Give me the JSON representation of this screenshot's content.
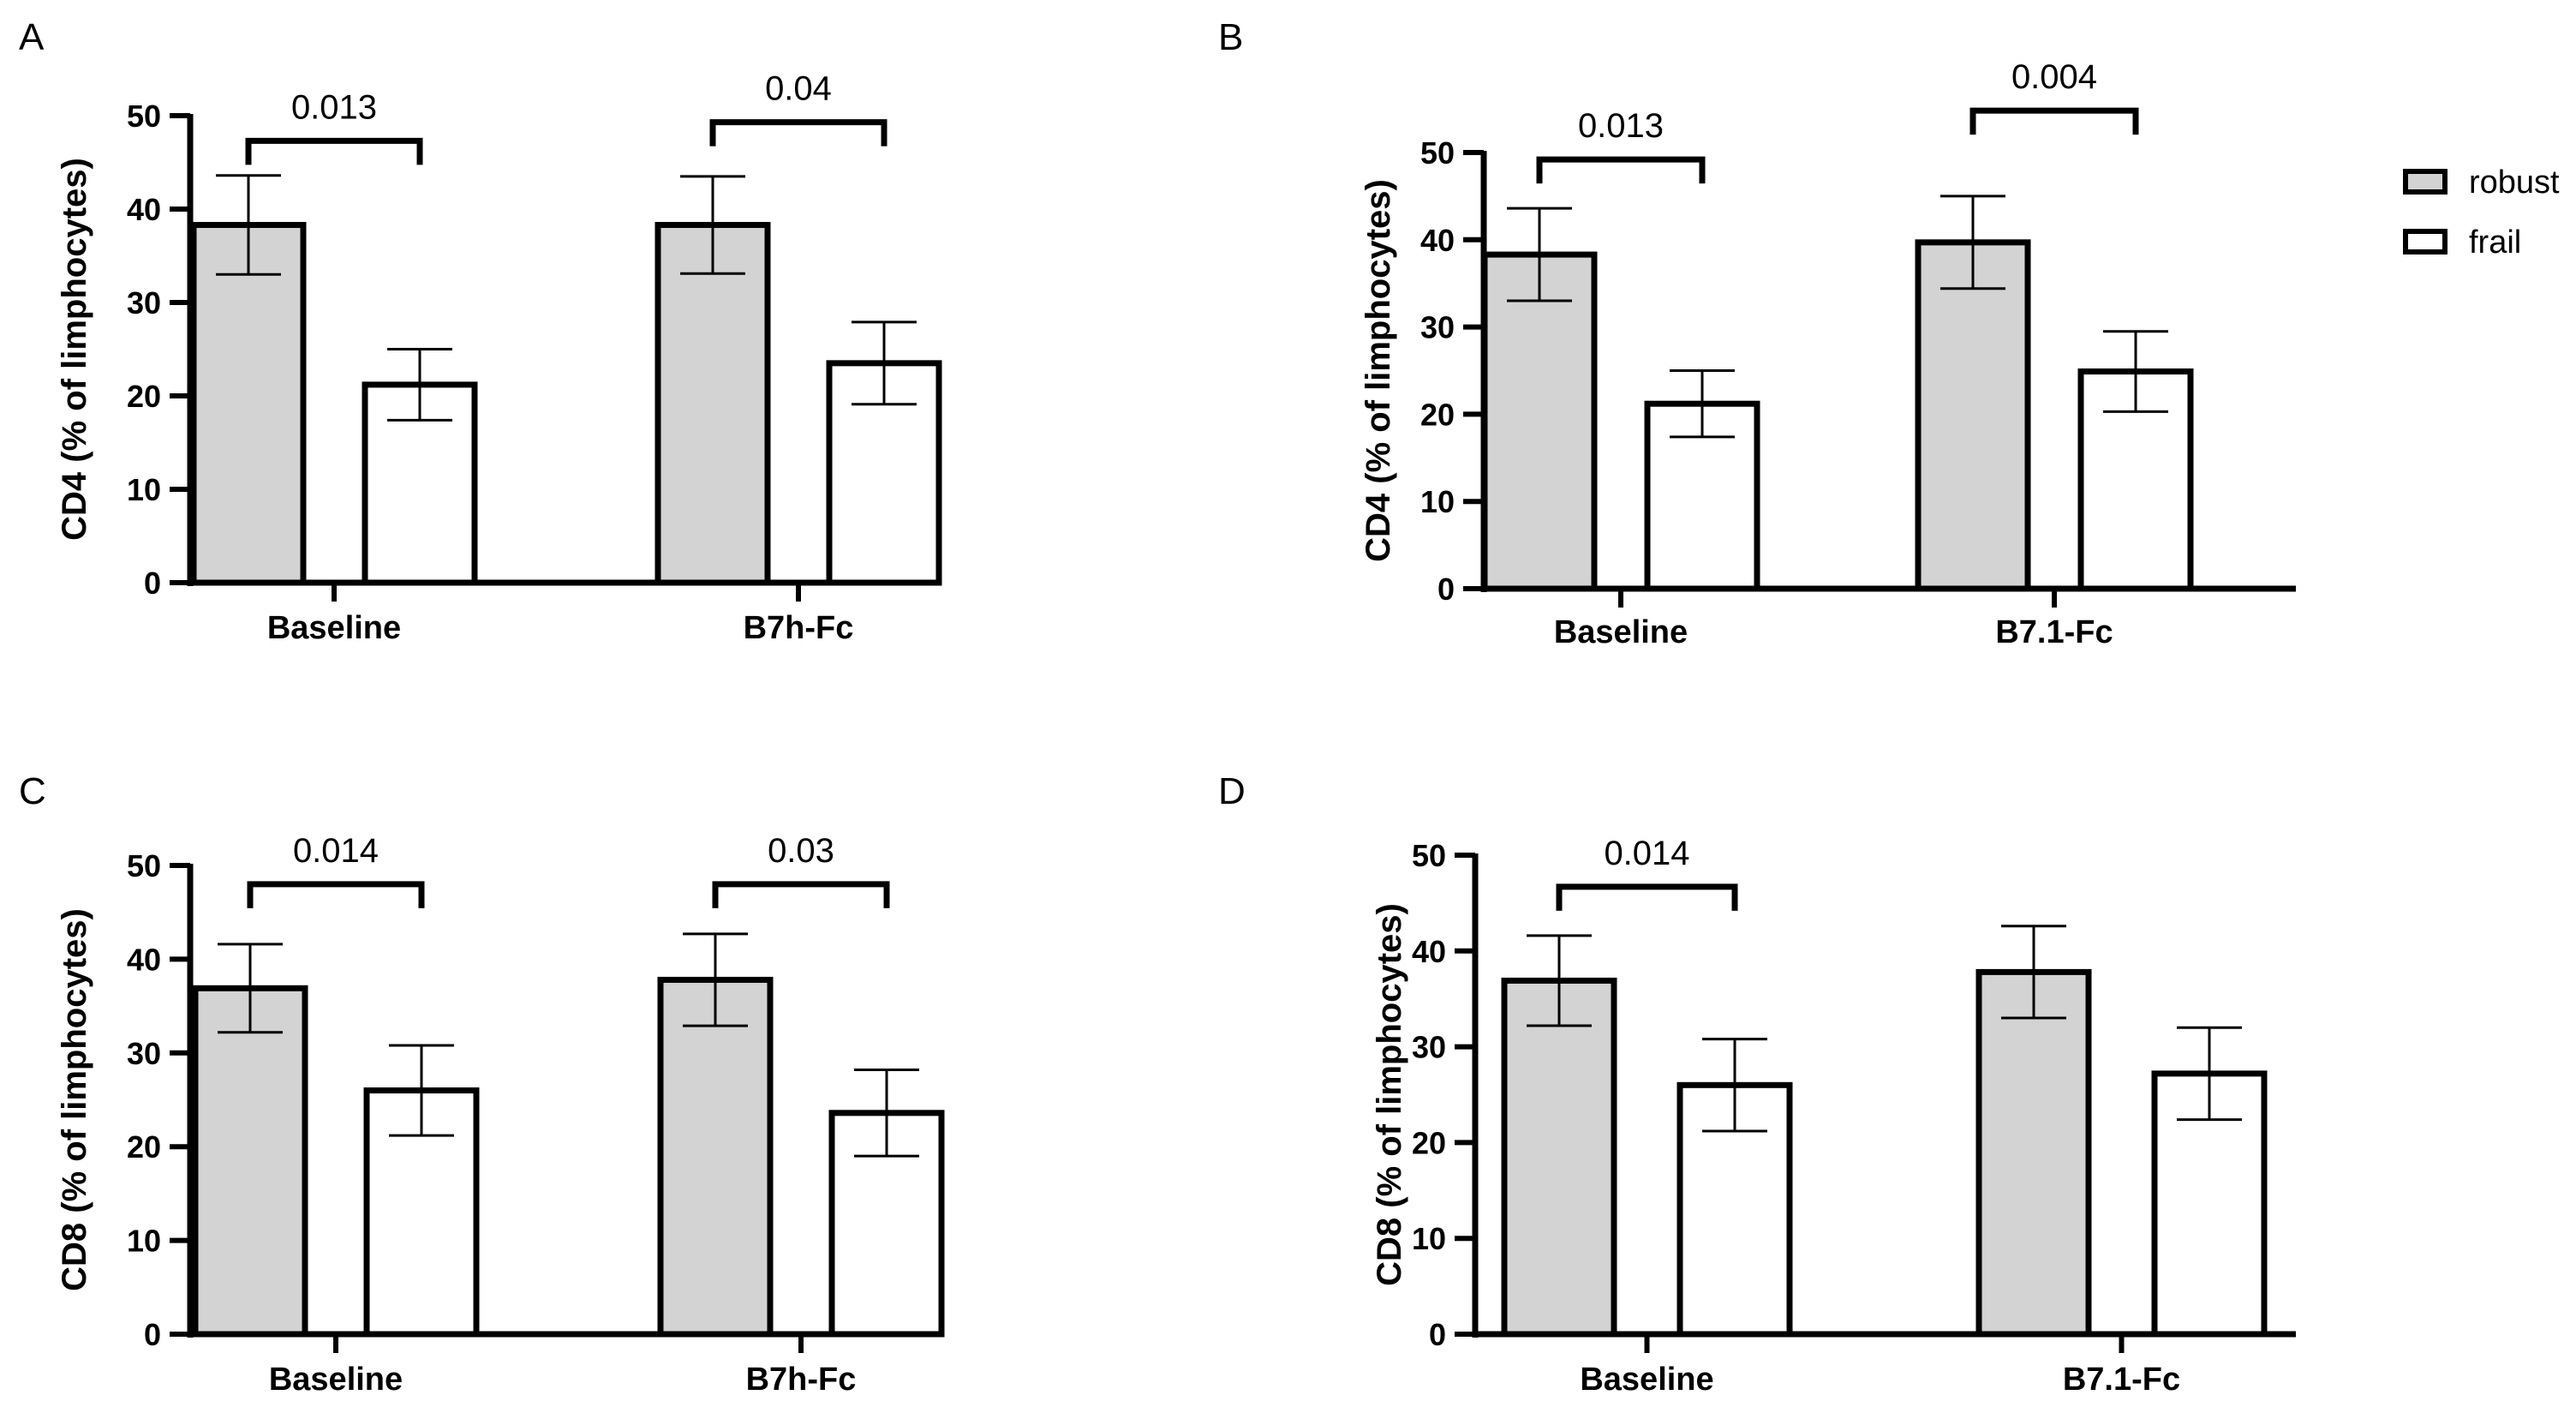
{
  "colors": {
    "robust": "#d3d3d3",
    "frail": "#ffffff",
    "stroke": "#000000"
  },
  "legend": [
    {
      "name": "robust",
      "fill": "#d3d3d3"
    },
    {
      "name": "frail",
      "fill": "#ffffff"
    }
  ],
  "chart_data": [
    {
      "panel": "A",
      "type": "bar",
      "ylabel": "CD4 (% of limphocytes)",
      "ylim": [
        0,
        50
      ],
      "yticks": [
        0,
        10,
        20,
        30,
        40,
        50
      ],
      "categories": [
        "Baseline",
        "B7h-Fc"
      ],
      "series": [
        {
          "name": "robust",
          "values": [
            38.3,
            38.3
          ],
          "errors": [
            5.3,
            5.2
          ]
        },
        {
          "name": "frail",
          "values": [
            21.2,
            23.5
          ],
          "errors": [
            3.8,
            4.4
          ]
        }
      ],
      "annotations": [
        {
          "category": "Baseline",
          "label": "0.013",
          "level": 47.3
        },
        {
          "category": "B7h-Fc",
          "label": "0.04",
          "level": 49.3
        }
      ]
    },
    {
      "panel": "B",
      "type": "bar",
      "ylabel": "CD4 (% of limphocytes)",
      "ylim": [
        0,
        50
      ],
      "yticks": [
        0,
        10,
        20,
        30,
        40,
        50
      ],
      "categories": [
        "Baseline",
        "B7.1-Fc"
      ],
      "series": [
        {
          "name": "robust",
          "values": [
            38.3,
            39.7
          ],
          "errors": [
            5.3,
            5.3
          ]
        },
        {
          "name": "frail",
          "values": [
            21.2,
            24.9
          ],
          "errors": [
            3.8,
            4.6
          ]
        }
      ],
      "annotations": [
        {
          "category": "Baseline",
          "label": "0.013",
          "level": 49.2
        },
        {
          "category": "B7.1-Fc",
          "label": "0.004",
          "level": 54.8
        }
      ]
    },
    {
      "panel": "C",
      "type": "bar",
      "ylabel": "CD8 (% of limphocytes)",
      "ylim": [
        0,
        50
      ],
      "yticks": [
        0,
        10,
        20,
        30,
        40,
        50
      ],
      "categories": [
        "Baseline",
        "B7h-Fc"
      ],
      "series": [
        {
          "name": "robust",
          "values": [
            36.9,
            37.8
          ],
          "errors": [
            4.7,
            4.9
          ]
        },
        {
          "name": "frail",
          "values": [
            26.0,
            23.6
          ],
          "errors": [
            4.8,
            4.6
          ]
        }
      ],
      "annotations": [
        {
          "category": "Baseline",
          "label": "0.014",
          "level": 48.0
        },
        {
          "category": "B7h-Fc",
          "label": "0.03",
          "level": 48.0
        }
      ]
    },
    {
      "panel": "D",
      "type": "bar",
      "ylabel": "CD8 (% of limphocytes)",
      "ylim": [
        0,
        50
      ],
      "yticks": [
        0,
        10,
        20,
        30,
        40,
        50
      ],
      "categories": [
        "Baseline",
        "B7.1-Fc"
      ],
      "series": [
        {
          "name": "robust",
          "values": [
            36.9,
            37.8
          ],
          "errors": [
            4.7,
            4.8
          ]
        },
        {
          "name": "frail",
          "values": [
            26.0,
            27.2
          ],
          "errors": [
            4.8,
            4.8
          ]
        }
      ],
      "annotations": [
        {
          "category": "Baseline",
          "label": "0.014",
          "level": 46.7
        }
      ]
    }
  ]
}
